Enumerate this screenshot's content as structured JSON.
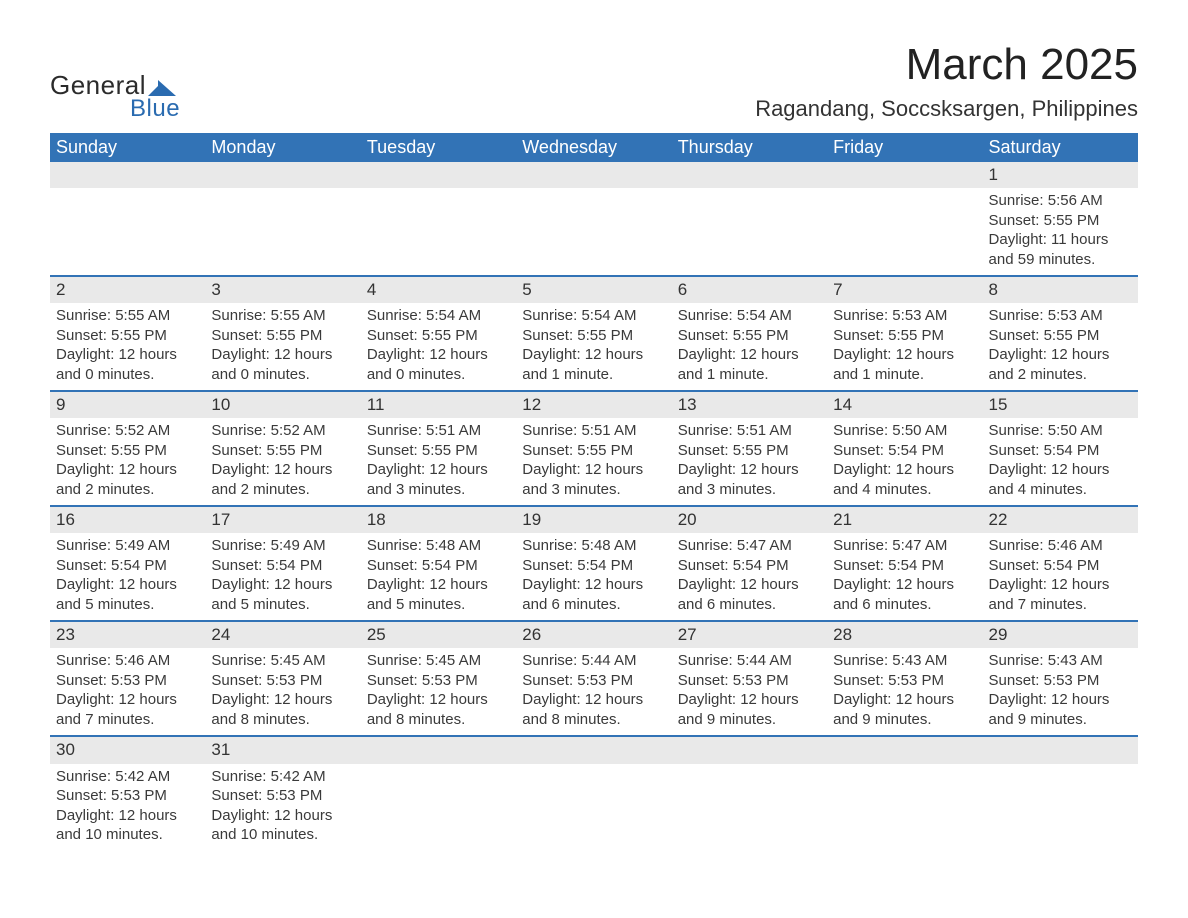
{
  "brand": {
    "word1": "General",
    "word2": "Blue",
    "mark_color": "#2a6bb0"
  },
  "title": "March 2025",
  "location": "Ragandang, Soccsksargen, Philippines",
  "styling": {
    "header_bg": "#3273b6",
    "header_text": "#ffffff",
    "daynum_bg": "#e9e9e9",
    "row_border": "#3273b6",
    "page_bg": "#ffffff",
    "body_text": "#3a3a3a",
    "title_fontsize": 44,
    "location_fontsize": 22,
    "header_fontsize": 18,
    "cell_fontsize": 15
  },
  "weekdays": [
    "Sunday",
    "Monday",
    "Tuesday",
    "Wednesday",
    "Thursday",
    "Friday",
    "Saturday"
  ],
  "weeks": [
    {
      "nums": [
        "",
        "",
        "",
        "",
        "",
        "",
        "1"
      ],
      "cells": [
        null,
        null,
        null,
        null,
        null,
        null,
        {
          "sunrise": "Sunrise: 5:56 AM",
          "sunset": "Sunset: 5:55 PM",
          "daylight1": "Daylight: 11 hours",
          "daylight2": "and 59 minutes."
        }
      ]
    },
    {
      "nums": [
        "2",
        "3",
        "4",
        "5",
        "6",
        "7",
        "8"
      ],
      "cells": [
        {
          "sunrise": "Sunrise: 5:55 AM",
          "sunset": "Sunset: 5:55 PM",
          "daylight1": "Daylight: 12 hours",
          "daylight2": "and 0 minutes."
        },
        {
          "sunrise": "Sunrise: 5:55 AM",
          "sunset": "Sunset: 5:55 PM",
          "daylight1": "Daylight: 12 hours",
          "daylight2": "and 0 minutes."
        },
        {
          "sunrise": "Sunrise: 5:54 AM",
          "sunset": "Sunset: 5:55 PM",
          "daylight1": "Daylight: 12 hours",
          "daylight2": "and 0 minutes."
        },
        {
          "sunrise": "Sunrise: 5:54 AM",
          "sunset": "Sunset: 5:55 PM",
          "daylight1": "Daylight: 12 hours",
          "daylight2": "and 1 minute."
        },
        {
          "sunrise": "Sunrise: 5:54 AM",
          "sunset": "Sunset: 5:55 PM",
          "daylight1": "Daylight: 12 hours",
          "daylight2": "and 1 minute."
        },
        {
          "sunrise": "Sunrise: 5:53 AM",
          "sunset": "Sunset: 5:55 PM",
          "daylight1": "Daylight: 12 hours",
          "daylight2": "and 1 minute."
        },
        {
          "sunrise": "Sunrise: 5:53 AM",
          "sunset": "Sunset: 5:55 PM",
          "daylight1": "Daylight: 12 hours",
          "daylight2": "and 2 minutes."
        }
      ]
    },
    {
      "nums": [
        "9",
        "10",
        "11",
        "12",
        "13",
        "14",
        "15"
      ],
      "cells": [
        {
          "sunrise": "Sunrise: 5:52 AM",
          "sunset": "Sunset: 5:55 PM",
          "daylight1": "Daylight: 12 hours",
          "daylight2": "and 2 minutes."
        },
        {
          "sunrise": "Sunrise: 5:52 AM",
          "sunset": "Sunset: 5:55 PM",
          "daylight1": "Daylight: 12 hours",
          "daylight2": "and 2 minutes."
        },
        {
          "sunrise": "Sunrise: 5:51 AM",
          "sunset": "Sunset: 5:55 PM",
          "daylight1": "Daylight: 12 hours",
          "daylight2": "and 3 minutes."
        },
        {
          "sunrise": "Sunrise: 5:51 AM",
          "sunset": "Sunset: 5:55 PM",
          "daylight1": "Daylight: 12 hours",
          "daylight2": "and 3 minutes."
        },
        {
          "sunrise": "Sunrise: 5:51 AM",
          "sunset": "Sunset: 5:55 PM",
          "daylight1": "Daylight: 12 hours",
          "daylight2": "and 3 minutes."
        },
        {
          "sunrise": "Sunrise: 5:50 AM",
          "sunset": "Sunset: 5:54 PM",
          "daylight1": "Daylight: 12 hours",
          "daylight2": "and 4 minutes."
        },
        {
          "sunrise": "Sunrise: 5:50 AM",
          "sunset": "Sunset: 5:54 PM",
          "daylight1": "Daylight: 12 hours",
          "daylight2": "and 4 minutes."
        }
      ]
    },
    {
      "nums": [
        "16",
        "17",
        "18",
        "19",
        "20",
        "21",
        "22"
      ],
      "cells": [
        {
          "sunrise": "Sunrise: 5:49 AM",
          "sunset": "Sunset: 5:54 PM",
          "daylight1": "Daylight: 12 hours",
          "daylight2": "and 5 minutes."
        },
        {
          "sunrise": "Sunrise: 5:49 AM",
          "sunset": "Sunset: 5:54 PM",
          "daylight1": "Daylight: 12 hours",
          "daylight2": "and 5 minutes."
        },
        {
          "sunrise": "Sunrise: 5:48 AM",
          "sunset": "Sunset: 5:54 PM",
          "daylight1": "Daylight: 12 hours",
          "daylight2": "and 5 minutes."
        },
        {
          "sunrise": "Sunrise: 5:48 AM",
          "sunset": "Sunset: 5:54 PM",
          "daylight1": "Daylight: 12 hours",
          "daylight2": "and 6 minutes."
        },
        {
          "sunrise": "Sunrise: 5:47 AM",
          "sunset": "Sunset: 5:54 PM",
          "daylight1": "Daylight: 12 hours",
          "daylight2": "and 6 minutes."
        },
        {
          "sunrise": "Sunrise: 5:47 AM",
          "sunset": "Sunset: 5:54 PM",
          "daylight1": "Daylight: 12 hours",
          "daylight2": "and 6 minutes."
        },
        {
          "sunrise": "Sunrise: 5:46 AM",
          "sunset": "Sunset: 5:54 PM",
          "daylight1": "Daylight: 12 hours",
          "daylight2": "and 7 minutes."
        }
      ]
    },
    {
      "nums": [
        "23",
        "24",
        "25",
        "26",
        "27",
        "28",
        "29"
      ],
      "cells": [
        {
          "sunrise": "Sunrise: 5:46 AM",
          "sunset": "Sunset: 5:53 PM",
          "daylight1": "Daylight: 12 hours",
          "daylight2": "and 7 minutes."
        },
        {
          "sunrise": "Sunrise: 5:45 AM",
          "sunset": "Sunset: 5:53 PM",
          "daylight1": "Daylight: 12 hours",
          "daylight2": "and 8 minutes."
        },
        {
          "sunrise": "Sunrise: 5:45 AM",
          "sunset": "Sunset: 5:53 PM",
          "daylight1": "Daylight: 12 hours",
          "daylight2": "and 8 minutes."
        },
        {
          "sunrise": "Sunrise: 5:44 AM",
          "sunset": "Sunset: 5:53 PM",
          "daylight1": "Daylight: 12 hours",
          "daylight2": "and 8 minutes."
        },
        {
          "sunrise": "Sunrise: 5:44 AM",
          "sunset": "Sunset: 5:53 PM",
          "daylight1": "Daylight: 12 hours",
          "daylight2": "and 9 minutes."
        },
        {
          "sunrise": "Sunrise: 5:43 AM",
          "sunset": "Sunset: 5:53 PM",
          "daylight1": "Daylight: 12 hours",
          "daylight2": "and 9 minutes."
        },
        {
          "sunrise": "Sunrise: 5:43 AM",
          "sunset": "Sunset: 5:53 PM",
          "daylight1": "Daylight: 12 hours",
          "daylight2": "and 9 minutes."
        }
      ]
    },
    {
      "nums": [
        "30",
        "31",
        "",
        "",
        "",
        "",
        ""
      ],
      "cells": [
        {
          "sunrise": "Sunrise: 5:42 AM",
          "sunset": "Sunset: 5:53 PM",
          "daylight1": "Daylight: 12 hours",
          "daylight2": "and 10 minutes."
        },
        {
          "sunrise": "Sunrise: 5:42 AM",
          "sunset": "Sunset: 5:53 PM",
          "daylight1": "Daylight: 12 hours",
          "daylight2": "and 10 minutes."
        },
        null,
        null,
        null,
        null,
        null
      ]
    }
  ]
}
